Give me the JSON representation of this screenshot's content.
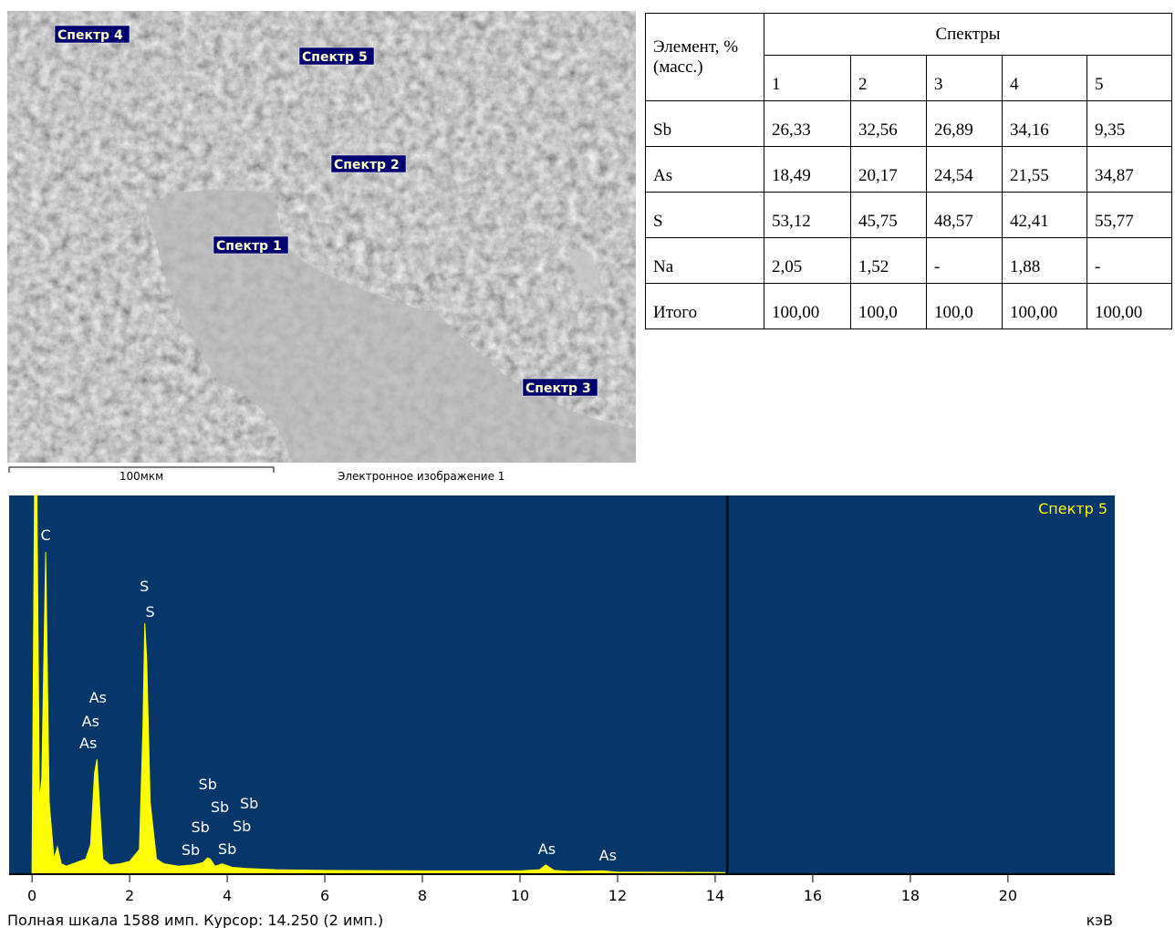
{
  "sem_image": {
    "labels": [
      "Спектр 4",
      "Спектр 5",
      "Спектр 2",
      "Спектр 1",
      "Спектр 3"
    ],
    "scale_label": "100мкм",
    "caption": "Электронное изображение 1"
  },
  "table": {
    "corner": "Элемент, % (масс.)",
    "group_header": "Спектры",
    "columns": [
      "1",
      "2",
      "3",
      "4",
      "5"
    ],
    "rows": [
      [
        "Sb",
        "26,33",
        "32,56",
        "26,89",
        "34,16",
        "9,35"
      ],
      [
        "As",
        "18,49",
        "20,17",
        "24,54",
        "21,55",
        "34,87"
      ],
      [
        "S",
        "53,12",
        "45,75",
        "48,57",
        "42,41",
        "55,77"
      ],
      [
        "Na",
        "2,05",
        "1,52",
        "-",
        "1,88",
        "-"
      ],
      [
        "Итого",
        "100,00",
        "100,0",
        "100,0",
        "100,00",
        "100,00"
      ]
    ]
  },
  "chart_data": {
    "type": "area",
    "title": "Спектр 5",
    "x_label": "кэВ",
    "footer": "Полная шкала 1588 имп. Курсор: 14.250  (2 имп.)",
    "color": "#ffff00",
    "background": "#06366a",
    "cursor": 14.25,
    "xlim": [
      -0.47,
      22.19
    ],
    "ylim": [
      0,
      1588
    ],
    "xticks": [
      0,
      2,
      4,
      6,
      8,
      10,
      12,
      14,
      16,
      18,
      20
    ],
    "x": [
      0,
      0.05,
      0.1,
      0.15,
      0.2,
      0.28,
      0.35,
      0.45,
      0.52,
      0.6,
      0.7,
      0.9,
      1.1,
      1.2,
      1.28,
      1.33,
      1.38,
      1.45,
      1.6,
      1.8,
      2.0,
      2.2,
      2.27,
      2.31,
      2.35,
      2.42,
      2.55,
      2.7,
      3.0,
      3.3,
      3.5,
      3.6,
      3.65,
      3.75,
      3.9,
      4.1,
      4.4,
      5,
      6,
      8,
      10,
      10.4,
      10.53,
      10.7,
      11,
      11.7,
      12,
      14.2
    ],
    "values": [
      0,
      1588,
      1588,
      300,
      400,
      1350,
      300,
      60,
      110,
      40,
      30,
      45,
      60,
      120,
      420,
      479,
      300,
      60,
      35,
      40,
      50,
      100,
      600,
      1051,
      900,
      300,
      60,
      40,
      30,
      35,
      45,
      65,
      60,
      30,
      40,
      25,
      20,
      15,
      12,
      10,
      10,
      15,
      35,
      12,
      8,
      10,
      5,
      3
    ],
    "annotations": [
      {
        "text": "C",
        "x": 0.28,
        "y": 1400
      },
      {
        "text": "S",
        "x": 2.3,
        "y": 1185
      },
      {
        "text": "S",
        "x": 2.42,
        "y": 1078
      },
      {
        "text": "As",
        "x": 1.35,
        "y": 717
      },
      {
        "text": "As",
        "x": 1.2,
        "y": 617
      },
      {
        "text": "As",
        "x": 1.15,
        "y": 525
      },
      {
        "text": "Sb",
        "x": 3.6,
        "y": 353
      },
      {
        "text": "Sb",
        "x": 3.85,
        "y": 257
      },
      {
        "text": "Sb",
        "x": 4.45,
        "y": 272
      },
      {
        "text": "Sb",
        "x": 3.45,
        "y": 172
      },
      {
        "text": "Sb",
        "x": 4.3,
        "y": 176
      },
      {
        "text": "Sb",
        "x": 3.25,
        "y": 77
      },
      {
        "text": "Sb",
        "x": 4.0,
        "y": 80
      },
      {
        "text": "As",
        "x": 10.55,
        "y": 80
      },
      {
        "text": "As",
        "x": 11.8,
        "y": 54
      }
    ]
  }
}
